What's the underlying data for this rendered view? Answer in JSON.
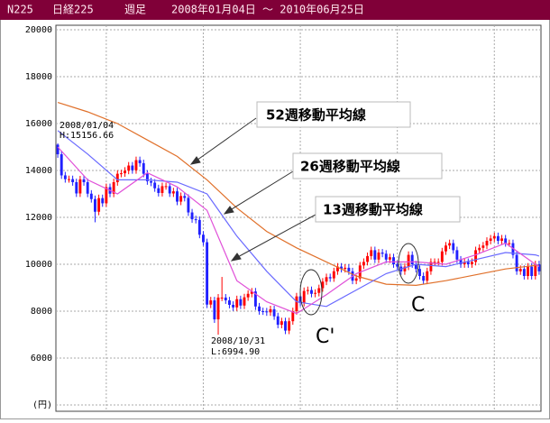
{
  "chart_data": {
    "type": "candlestick",
    "header": {
      "code": "N225",
      "name": "日経225",
      "period": "週足",
      "range": "2008年01月04日 ～ 2010年06月25日"
    },
    "ylim": [
      4000,
      20000
    ],
    "yticks": [
      {
        "value": 4000,
        "label": "(円)"
      },
      6000,
      8000,
      10000,
      12000,
      14000,
      16000,
      18000,
      20000
    ],
    "grid": true,
    "xgrid": [
      13,
      39,
      65,
      91,
      117
    ],
    "up_color": "#ff0000",
    "down_color": "#2020ff",
    "open": [
      15100,
      14690,
      13790,
      13630,
      13630,
      13500,
      13020,
      13620,
      13500,
      13010,
      12780,
      12240,
      12820,
      12600,
      13290,
      13010,
      13500,
      13860,
      13880,
      13990,
      14210,
      14010,
      14440,
      14310,
      13860,
      13540,
      13480,
      13240,
      13040,
      13330,
      13330,
      13020,
      13110,
      12670,
      12910,
      12830,
      12210,
      11920,
      11890,
      11260,
      10940,
      8280,
      8460,
      7650,
      8580,
      8580,
      8460,
      8270,
      8160,
      8510,
      8240,
      8590,
      8740,
      8840,
      8200,
      8000,
      7990,
      7950,
      8080,
      7780,
      7420,
      7570,
      7170,
      7570,
      8000,
      8630,
      8350,
      8860,
      8900,
      8740,
      8780,
      8980,
      9260,
      9450,
      9400,
      9700,
      9900,
      9800,
      9850,
      9700,
      9300,
      9400,
      9950,
      10100,
      10350,
      10600,
      10200,
      10500,
      10450,
      10200,
      10300,
      10000,
      9900,
      9700,
      9900,
      10400,
      10000,
      9800,
      9500,
      9300,
      9700,
      10100,
      10100,
      10100,
      10550,
      10800,
      10900,
      10600,
      10200,
      10000,
      10100,
      10000,
      10100,
      10600,
      10700,
      10800,
      11000,
      11100,
      11200,
      11000,
      11100,
      10900,
      10900,
      10400,
      9700,
      9800,
      9500,
      9900,
      9500,
      10000
    ],
    "high": [
      15156.66,
      14840,
      13940,
      13780,
      13780,
      13650,
      13770,
      13770,
      13650,
      13160,
      12930,
      12970,
      12970,
      13440,
      13440,
      13650,
      14010,
      14030,
      14140,
      14360,
      14360,
      14590,
      14590,
      14460,
      14010,
      13690,
      13630,
      13390,
      13480,
      13480,
      13480,
      13260,
      13260,
      13060,
      13060,
      12980,
      12360,
      12070,
      12040,
      11410,
      11090,
      8610,
      8610,
      8730,
      9460,
      8730,
      8610,
      8420,
      8660,
      8660,
      8740,
      8890,
      8990,
      8990,
      8350,
      8150,
      8140,
      8230,
      8230,
      7930,
      7720,
      7720,
      7720,
      8150,
      8780,
      8780,
      9010,
      9050,
      9050,
      8930,
      9130,
      9410,
      9600,
      9600,
      9850,
      10050,
      10050,
      10000,
      10000,
      9850,
      9550,
      10100,
      10250,
      10500,
      10750,
      10750,
      10650,
      10650,
      10600,
      10450,
      10450,
      10150,
      10050,
      10050,
      10550,
      10550,
      10150,
      9950,
      9650,
      9850,
      10250,
      10250,
      10250,
      10700,
      10950,
      11050,
      11050,
      10750,
      10350,
      10250,
      10250,
      10250,
      10750,
      10850,
      10950,
      11150,
      11250,
      11350,
      11350,
      11250,
      11250,
      11050,
      11050,
      10550,
      9950,
      9950,
      10050,
      10050,
      10150,
      10150
    ],
    "low": [
      14540,
      13640,
      13480,
      13480,
      13350,
      12870,
      12870,
      13350,
      12860,
      12630,
      11790,
      12090,
      12450,
      12450,
      12860,
      12860,
      13350,
      13710,
      13730,
      13840,
      13860,
      13860,
      14160,
      13710,
      13390,
      13330,
      13090,
      12890,
      12890,
      13180,
      12870,
      12870,
      12520,
      12520,
      12680,
      12060,
      11770,
      11740,
      11110,
      10790,
      8130,
      8130,
      7500,
      6994.9,
      8430,
      8310,
      8120,
      8010,
      8010,
      8090,
      8090,
      8440,
      8590,
      8050,
      7850,
      7840,
      7800,
      7800,
      7630,
      7270,
      7270,
      7020,
      7020,
      7420,
      7850,
      8200,
      8200,
      8710,
      8590,
      8590,
      8630,
      8830,
      9110,
      9250,
      9250,
      9550,
      9650,
      9650,
      9550,
      9150,
      9150,
      9250,
      9800,
      9950,
      10200,
      10050,
      10050,
      10300,
      10050,
      10050,
      9850,
      9750,
      9550,
      9550,
      9750,
      9850,
      9650,
      9350,
      9150,
      9150,
      9550,
      9950,
      9950,
      9950,
      10400,
      10650,
      10450,
      10050,
      9850,
      9850,
      9850,
      9850,
      9950,
      10450,
      10550,
      10650,
      10850,
      10950,
      10850,
      10850,
      10750,
      10750,
      10250,
      9550,
      9550,
      9350,
      9350,
      9350,
      9350,
      9550
    ],
    "close": [
      14690,
      13790,
      13630,
      13630,
      13500,
      13020,
      13620,
      13500,
      13010,
      12780,
      12240,
      12820,
      12600,
      13290,
      13010,
      13500,
      13860,
      13880,
      13990,
      14210,
      14010,
      14440,
      14310,
      13860,
      13540,
      13480,
      13240,
      13040,
      13330,
      13330,
      13020,
      13110,
      12670,
      12910,
      12830,
      12210,
      11920,
      11890,
      11260,
      10940,
      8280,
      8460,
      7650,
      8580,
      8580,
      8460,
      8270,
      8160,
      8510,
      8240,
      8590,
      8740,
      8840,
      8200,
      8000,
      7990,
      7950,
      8080,
      7780,
      7420,
      7570,
      7170,
      7570,
      8000,
      8630,
      8350,
      8860,
      8900,
      8740,
      8780,
      8980,
      9260,
      9450,
      9400,
      9700,
      9900,
      9800,
      9850,
      9700,
      9300,
      9400,
      9950,
      10100,
      10350,
      10600,
      10200,
      10500,
      10450,
      10200,
      10300,
      10000,
      9900,
      9700,
      9900,
      10400,
      10000,
      9800,
      9500,
      9300,
      9700,
      10100,
      10100,
      10100,
      10550,
      10800,
      10900,
      10600,
      10200,
      10000,
      10100,
      10000,
      10100,
      10600,
      10700,
      10800,
      11000,
      11100,
      11200,
      11000,
      11100,
      10900,
      10900,
      10400,
      9700,
      9800,
      9500,
      9900,
      9500,
      10000,
      9700
    ],
    "series": [
      {
        "name": "52週移動平均線",
        "color": "#e0702a",
        "x": [
          0,
          8,
          16,
          24,
          32,
          40,
          48,
          56,
          64,
          72,
          80,
          88,
          96,
          104,
          112,
          120,
          128,
          129
        ],
        "values": [
          16900,
          16500,
          16000,
          15300,
          14600,
          13600,
          12400,
          11400,
          10700,
          10100,
          9500,
          9150,
          9100,
          9300,
          9550,
          9800,
          9950,
          9950
        ]
      },
      {
        "name": "26週移動平均線",
        "color": "#6a6aff",
        "x": [
          0,
          8,
          16,
          24,
          32,
          40,
          48,
          56,
          64,
          72,
          80,
          88,
          96,
          104,
          112,
          120,
          128,
          129
        ],
        "values": [
          15700,
          14700,
          13600,
          13600,
          13500,
          13000,
          11200,
          9700,
          8400,
          8200,
          8900,
          9600,
          10000,
          9900,
          10200,
          10500,
          10400,
          10350
        ]
      },
      {
        "name": "13週移動平均線",
        "color": "#e050d8",
        "x": [
          0,
          8,
          16,
          24,
          32,
          40,
          48,
          56,
          64,
          72,
          80,
          88,
          96,
          104,
          112,
          120,
          128,
          129
        ],
        "values": [
          15000,
          13600,
          13000,
          13900,
          13300,
          12300,
          9300,
          8400,
          7900,
          8700,
          9600,
          10100,
          10100,
          10000,
          10400,
          10900,
          10000,
          9900
        ]
      }
    ],
    "annotations": {
      "high_date": "2008/01/04",
      "high_value": "H:15156.66",
      "low_date": "2008/10/31",
      "low_value": "L:6994.90",
      "c_prime": "C'",
      "c": "C"
    }
  }
}
